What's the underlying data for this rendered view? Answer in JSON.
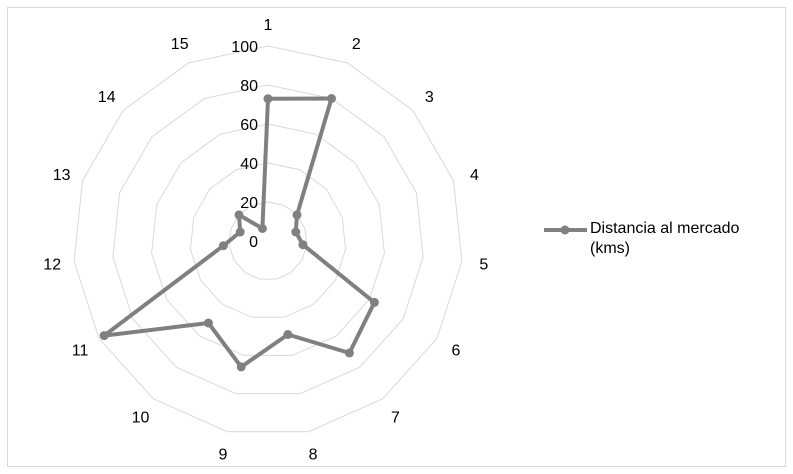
{
  "chart_data": {
    "type": "radar",
    "title": "",
    "categories": [
      "1",
      "2",
      "3",
      "4",
      "5",
      "6",
      "7",
      "8",
      "9",
      "10",
      "11",
      "12",
      "13",
      "14",
      "15"
    ],
    "radial_ticks": [
      "0",
      "20",
      "40",
      "60",
      "80",
      "100"
    ],
    "rlim": [
      0,
      100
    ],
    "grid": true,
    "legend_position": "right",
    "series": [
      {
        "name": "Distancia al mercado (kms)",
        "values": [
          73,
          80,
          20,
          15,
          18,
          63,
          71,
          49,
          66,
          52,
          97,
          23,
          15,
          20,
          7
        ]
      }
    ],
    "colors": {
      "series": "#808080",
      "grid": "#d9d9d9",
      "border": "#d9d9d9"
    }
  }
}
